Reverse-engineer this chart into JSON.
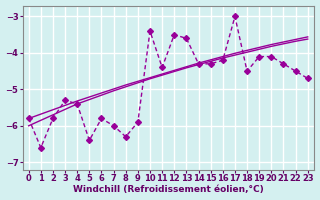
{
  "x": [
    0,
    1,
    2,
    3,
    4,
    5,
    6,
    7,
    8,
    9,
    10,
    11,
    12,
    13,
    14,
    15,
    16,
    17,
    18,
    19,
    20,
    21,
    22,
    23
  ],
  "y_main": [
    -5.8,
    -6.6,
    -5.8,
    -5.3,
    -5.4,
    -6.4,
    -5.8,
    -6.0,
    -6.3,
    -5.9,
    -3.4,
    -4.4,
    -3.5,
    -3.6,
    -4.3,
    -4.3,
    -4.2,
    -3.0,
    -4.5,
    -4.1,
    -4.1,
    -4.3,
    -4.5,
    -4.7
  ],
  "trend_line": [
    -6.0,
    -5.85,
    -5.7,
    -5.55,
    -5.4,
    -5.28,
    -5.16,
    -5.04,
    -4.93,
    -4.82,
    -4.71,
    -4.61,
    -4.51,
    -4.41,
    -4.32,
    -4.23,
    -4.14,
    -4.06,
    -3.98,
    -3.9,
    -3.82,
    -3.75,
    -3.68,
    -3.62
  ],
  "trend_line2": [
    -5.8,
    -5.68,
    -5.56,
    -5.44,
    -5.32,
    -5.21,
    -5.1,
    -4.99,
    -4.88,
    -4.78,
    -4.68,
    -4.58,
    -4.48,
    -4.38,
    -4.28,
    -4.19,
    -4.1,
    -4.01,
    -3.93,
    -3.85,
    -3.77,
    -3.7,
    -3.63,
    -3.56
  ],
  "xlabel": "Windchill (Refroidissement éolien,°C)",
  "ylim": [
    -7.2,
    -2.7
  ],
  "xlim": [
    -0.5,
    23.5
  ],
  "yticks": [
    -7,
    -6,
    -5,
    -4,
    -3
  ],
  "xticks": [
    0,
    1,
    2,
    3,
    4,
    5,
    6,
    7,
    8,
    9,
    10,
    11,
    12,
    13,
    14,
    15,
    16,
    17,
    18,
    19,
    20,
    21,
    22,
    23
  ],
  "bg_color": "#d4f0f0",
  "line_color": "#990099",
  "grid_color": "#ffffff",
  "text_color": "#660066"
}
